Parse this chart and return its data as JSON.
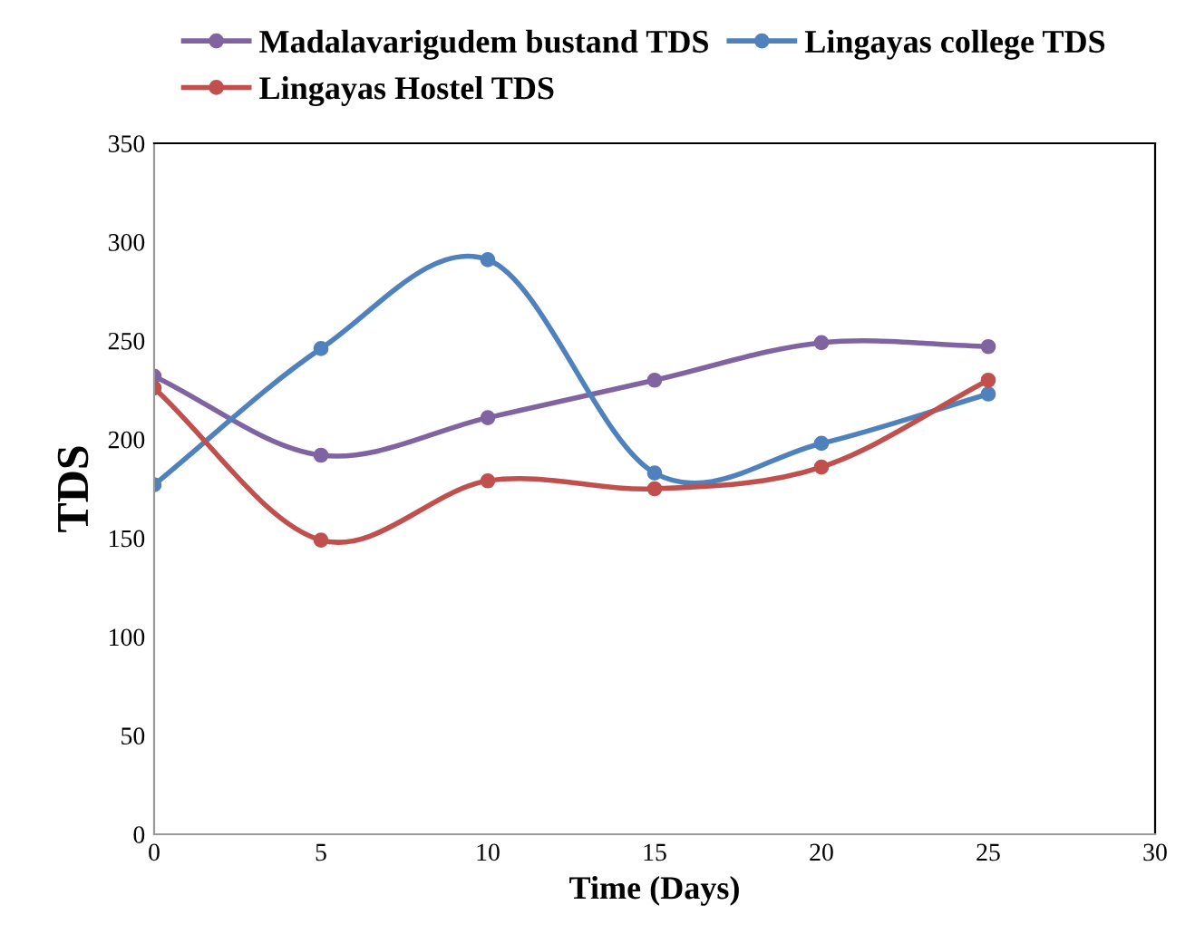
{
  "chart_data": {
    "type": "line",
    "xlabel": "Time (Days)",
    "ylabel": "TDS",
    "x": [
      0,
      5,
      10,
      15,
      20,
      25
    ],
    "series": [
      {
        "name": "Madalavarigudem bustand TDS",
        "color": "#8064a2",
        "values": [
          232,
          192,
          211,
          230,
          249,
          247
        ]
      },
      {
        "name": "Lingayas college TDS",
        "color": "#4f81bd",
        "values": [
          177,
          246,
          291,
          183,
          198,
          223
        ]
      },
      {
        "name": "Lingayas Hostel TDS",
        "color": "#c0504d",
        "values": [
          226,
          149,
          179,
          175,
          186,
          230
        ]
      }
    ],
    "xlim": [
      0,
      30
    ],
    "xticks": [
      0,
      5,
      10,
      15,
      20,
      25,
      30
    ],
    "ylim": [
      0,
      350
    ],
    "yticks": [
      0,
      50,
      100,
      150,
      200,
      250,
      300,
      350
    ],
    "grid": false,
    "legend": "top",
    "marker": "circle",
    "line_style": "solid"
  }
}
